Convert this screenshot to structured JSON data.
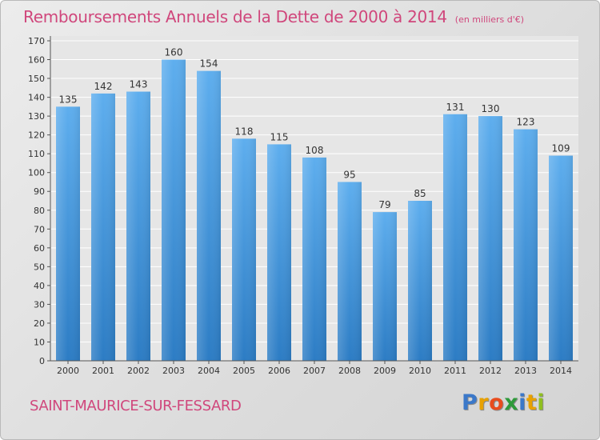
{
  "title": "Remboursements Annuels de la Dette de 2000 à 2014",
  "unit": "(en milliers d'€)",
  "town": "SAINT-MAURICE-SUR-FESSARD",
  "logo": {
    "letters": [
      "P",
      "r",
      "o",
      "x",
      "i",
      "t",
      "i"
    ],
    "colors": [
      "#3b78c9",
      "#e8a100",
      "#e84c1e",
      "#2e9a3a",
      "#3b78c9",
      "#e8a100",
      "#8fbf1f"
    ]
  },
  "chart_data": {
    "type": "bar",
    "categories": [
      "2000",
      "2001",
      "2002",
      "2003",
      "2004",
      "2005",
      "2006",
      "2007",
      "2008",
      "2009",
      "2010",
      "2011",
      "2012",
      "2013",
      "2014"
    ],
    "values": [
      135,
      142,
      143,
      160,
      154,
      118,
      115,
      108,
      95,
      79,
      85,
      131,
      130,
      123,
      109
    ],
    "xlabel": "",
    "ylabel": "",
    "ylim": [
      0,
      170
    ],
    "yticks": [
      0,
      10,
      20,
      30,
      40,
      50,
      60,
      70,
      80,
      90,
      100,
      110,
      120,
      130,
      140,
      150,
      160,
      170
    ],
    "grid": true,
    "bar_color": "#5aaaea"
  }
}
